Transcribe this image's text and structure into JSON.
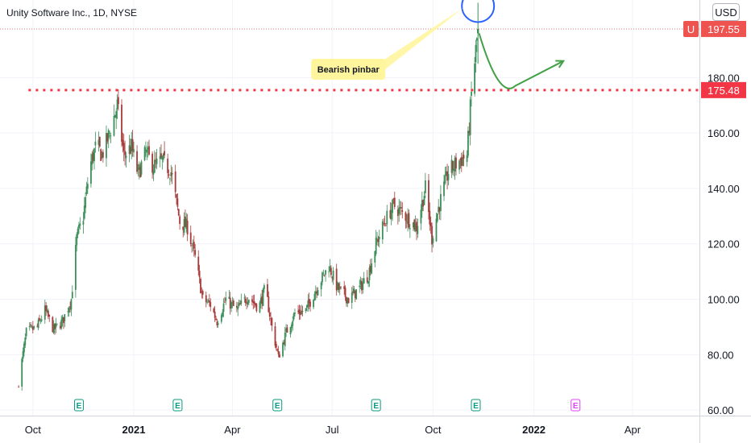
{
  "symbol_title": "Unity Software Inc., 1D, NYSE",
  "currency": "USD",
  "colors": {
    "up": "#26a69a",
    "down": "#ef5350",
    "up_candle": "#3c8f5a",
    "down_candle": "#a83a3a",
    "resistance": "#f23645",
    "annotation_green": "#43a047",
    "circle": "#2962ff",
    "callout_fill": "#fff59d",
    "earnings_green": "#089981",
    "earnings_pink": "#e040fb"
  },
  "chart_data": {
    "type": "candlestick",
    "y_axis": {
      "min": 58,
      "max": 208,
      "ticks": [
        60,
        80,
        100,
        120,
        140,
        160,
        180
      ],
      "tick_labels": [
        "60.00",
        "80.00",
        "100.00",
        "120.00",
        "140.00",
        "160.00",
        "180.00"
      ]
    },
    "x_axis": {
      "start": "2020-09-01",
      "end": "2022-06-01",
      "ticks": [
        {
          "label": "Oct",
          "date": "2020-10-01",
          "bold": false
        },
        {
          "label": "2021",
          "date": "2021-01-01",
          "bold": true
        },
        {
          "label": "Apr",
          "date": "2021-04-01",
          "bold": false
        },
        {
          "label": "Jul",
          "date": "2021-07-01",
          "bold": false
        },
        {
          "label": "Oct",
          "date": "2021-10-01",
          "bold": false
        },
        {
          "label": "2022",
          "date": "2022-01-01",
          "bold": true
        },
        {
          "label": "Apr",
          "date": "2022-04-01",
          "bold": false
        }
      ]
    },
    "price_path": [
      [
        "2020-09-18",
        70
      ],
      [
        "2020-09-25",
        88
      ],
      [
        "2020-10-05",
        90
      ],
      [
        "2020-10-12",
        96
      ],
      [
        "2020-10-20",
        89
      ],
      [
        "2020-10-28",
        92
      ],
      [
        "2020-11-05",
        100
      ],
      [
        "2020-11-10",
        122
      ],
      [
        "2020-11-16",
        130
      ],
      [
        "2020-11-22",
        148
      ],
      [
        "2020-11-28",
        156
      ],
      [
        "2020-12-03",
        152
      ],
      [
        "2020-12-10",
        160
      ],
      [
        "2020-12-17",
        170
      ],
      [
        "2020-12-23",
        152
      ],
      [
        "2020-12-30",
        155
      ],
      [
        "2021-01-05",
        145
      ],
      [
        "2021-01-12",
        153
      ],
      [
        "2021-01-19",
        148
      ],
      [
        "2021-01-27",
        150
      ],
      [
        "2021-02-04",
        146
      ],
      [
        "2021-02-12",
        128
      ],
      [
        "2021-02-19",
        126
      ],
      [
        "2021-02-26",
        115
      ],
      [
        "2021-03-05",
        100
      ],
      [
        "2021-03-12",
        98
      ],
      [
        "2021-03-18",
        92
      ],
      [
        "2021-03-26",
        100
      ],
      [
        "2021-04-05",
        96
      ],
      [
        "2021-04-15",
        101
      ],
      [
        "2021-04-25",
        97
      ],
      [
        "2021-05-01",
        104
      ],
      [
        "2021-05-07",
        90
      ],
      [
        "2021-05-13",
        79
      ],
      [
        "2021-05-20",
        88
      ],
      [
        "2021-05-28",
        95
      ],
      [
        "2021-06-07",
        96
      ],
      [
        "2021-06-18",
        105
      ],
      [
        "2021-06-28",
        112
      ],
      [
        "2021-07-06",
        104
      ],
      [
        "2021-07-16",
        100
      ],
      [
        "2021-07-26",
        104
      ],
      [
        "2021-08-03",
        109
      ],
      [
        "2021-08-10",
        120
      ],
      [
        "2021-08-18",
        128
      ],
      [
        "2021-08-26",
        134
      ],
      [
        "2021-09-06",
        130
      ],
      [
        "2021-09-16",
        126
      ],
      [
        "2021-09-24",
        140
      ],
      [
        "2021-09-30",
        122
      ],
      [
        "2021-10-06",
        133
      ],
      [
        "2021-10-15",
        146
      ],
      [
        "2021-10-25",
        150
      ],
      [
        "2021-11-01",
        152
      ],
      [
        "2021-11-05",
        174
      ],
      [
        "2021-11-11",
        197.55
      ]
    ],
    "price_label": {
      "value": 197.55,
      "text": "197.55",
      "tag": "U"
    },
    "resistance_level": {
      "value": 175.48,
      "text": "175.48",
      "from": "2020-09-27",
      "to": "2022-06-01"
    },
    "pinbar": {
      "date": "2021-11-11",
      "open": 196,
      "high": 207,
      "low": 185,
      "close": 197.55
    },
    "annotation": {
      "text": "Bearish pinbar",
      "anchor": [
        "2021-07-01",
        183
      ]
    },
    "projection": [
      [
        "2021-11-12",
        196
      ],
      [
        "2021-12-15",
        177
      ],
      [
        "2022-01-28",
        186
      ]
    ],
    "earnings_markers": [
      {
        "date": "2020-11-12",
        "symbol": "E",
        "reported": true
      },
      {
        "date": "2021-02-10",
        "symbol": "E",
        "reported": true
      },
      {
        "date": "2021-05-12",
        "symbol": "E",
        "reported": true
      },
      {
        "date": "2021-08-10",
        "symbol": "E",
        "reported": true
      },
      {
        "date": "2021-11-09",
        "symbol": "E",
        "reported": true
      },
      {
        "date": "2022-02-08",
        "symbol": "E",
        "reported": false
      }
    ]
  }
}
